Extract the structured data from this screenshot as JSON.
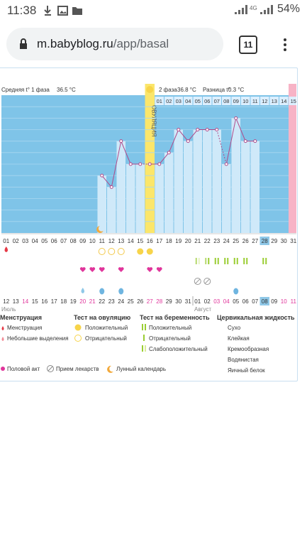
{
  "status": {
    "time": "11:38",
    "network": "4G",
    "battery": "54%"
  },
  "browser": {
    "url_host": "m.babyblog.ru",
    "url_path": "/app/basal",
    "tab_count": "11"
  },
  "chart": {
    "phase1_label": "Средняя t° 1 фаза",
    "phase1_value": "36.5 °C",
    "phase2_label": "2 фаза",
    "phase2_value": "36.8 °C",
    "diff_label": "Разница t°",
    "diff_value": "0.3 °C",
    "ovulation_label": "ОВУЛЯЦИЯ",
    "month_left": "Июль",
    "month_right": "Август"
  },
  "chart_data": {
    "type": "line",
    "title": "",
    "cycle_days": [
      "01",
      "02",
      "03",
      "04",
      "05",
      "06",
      "07",
      "08",
      "09",
      "10",
      "11",
      "12",
      "13",
      "14",
      "15",
      "16",
      "17",
      "18",
      "19",
      "20",
      "21",
      "22",
      "23",
      "24",
      "25",
      "26",
      "27",
      "28",
      "29",
      "30",
      "31"
    ],
    "top_days_after_ovulation": [
      "01",
      "02",
      "03",
      "04",
      "05",
      "06",
      "07",
      "08",
      "09",
      "10",
      "11",
      "12",
      "13",
      "14",
      "15"
    ],
    "dates": [
      "12",
      "13",
      "14",
      "15",
      "16",
      "17",
      "18",
      "19",
      "20",
      "21",
      "22",
      "23",
      "24",
      "25",
      "26",
      "27",
      "28",
      "29",
      "30",
      "31",
      "01",
      "02",
      "03",
      "04",
      "05",
      "06",
      "07",
      "08",
      "09",
      "10",
      "11"
    ],
    "temperature_levels": [
      null,
      null,
      null,
      null,
      null,
      null,
      null,
      null,
      null,
      null,
      3,
      2,
      6,
      4,
      4,
      4,
      4,
      5,
      7,
      6,
      7,
      7,
      7,
      4,
      8,
      6,
      6,
      null,
      null,
      null,
      null
    ],
    "note": ""
  },
  "legend": {
    "menstruation": {
      "title": "Менструация",
      "items": [
        "Менструация",
        "Небольшие выделения"
      ]
    },
    "ovulation_test": {
      "title": "Тест на овуляцию",
      "items": [
        "Положительный",
        "Отрицательный"
      ]
    },
    "pregnancy_test": {
      "title": "Тест на беременность",
      "items": [
        "Положительный",
        "Отрицательный",
        "Слабоположительный"
      ]
    },
    "cervical": {
      "title": "Цервикальная жидкость",
      "items": [
        "Сухо",
        "Клейкая",
        "Кремообразная",
        "Водянистая",
        "Яичный белок"
      ]
    },
    "bottom": [
      "Половой акт",
      "Прием лекарств",
      "Лунный календарь"
    ]
  },
  "colors": {
    "chart_bg": "#7fc4e8",
    "bar": "#cfe9f9",
    "ovulation": "#fbe66b",
    "pink": "#f7b3c6",
    "line": "#b04a8a",
    "heart": "#e0359b",
    "drop": "#e63946"
  }
}
